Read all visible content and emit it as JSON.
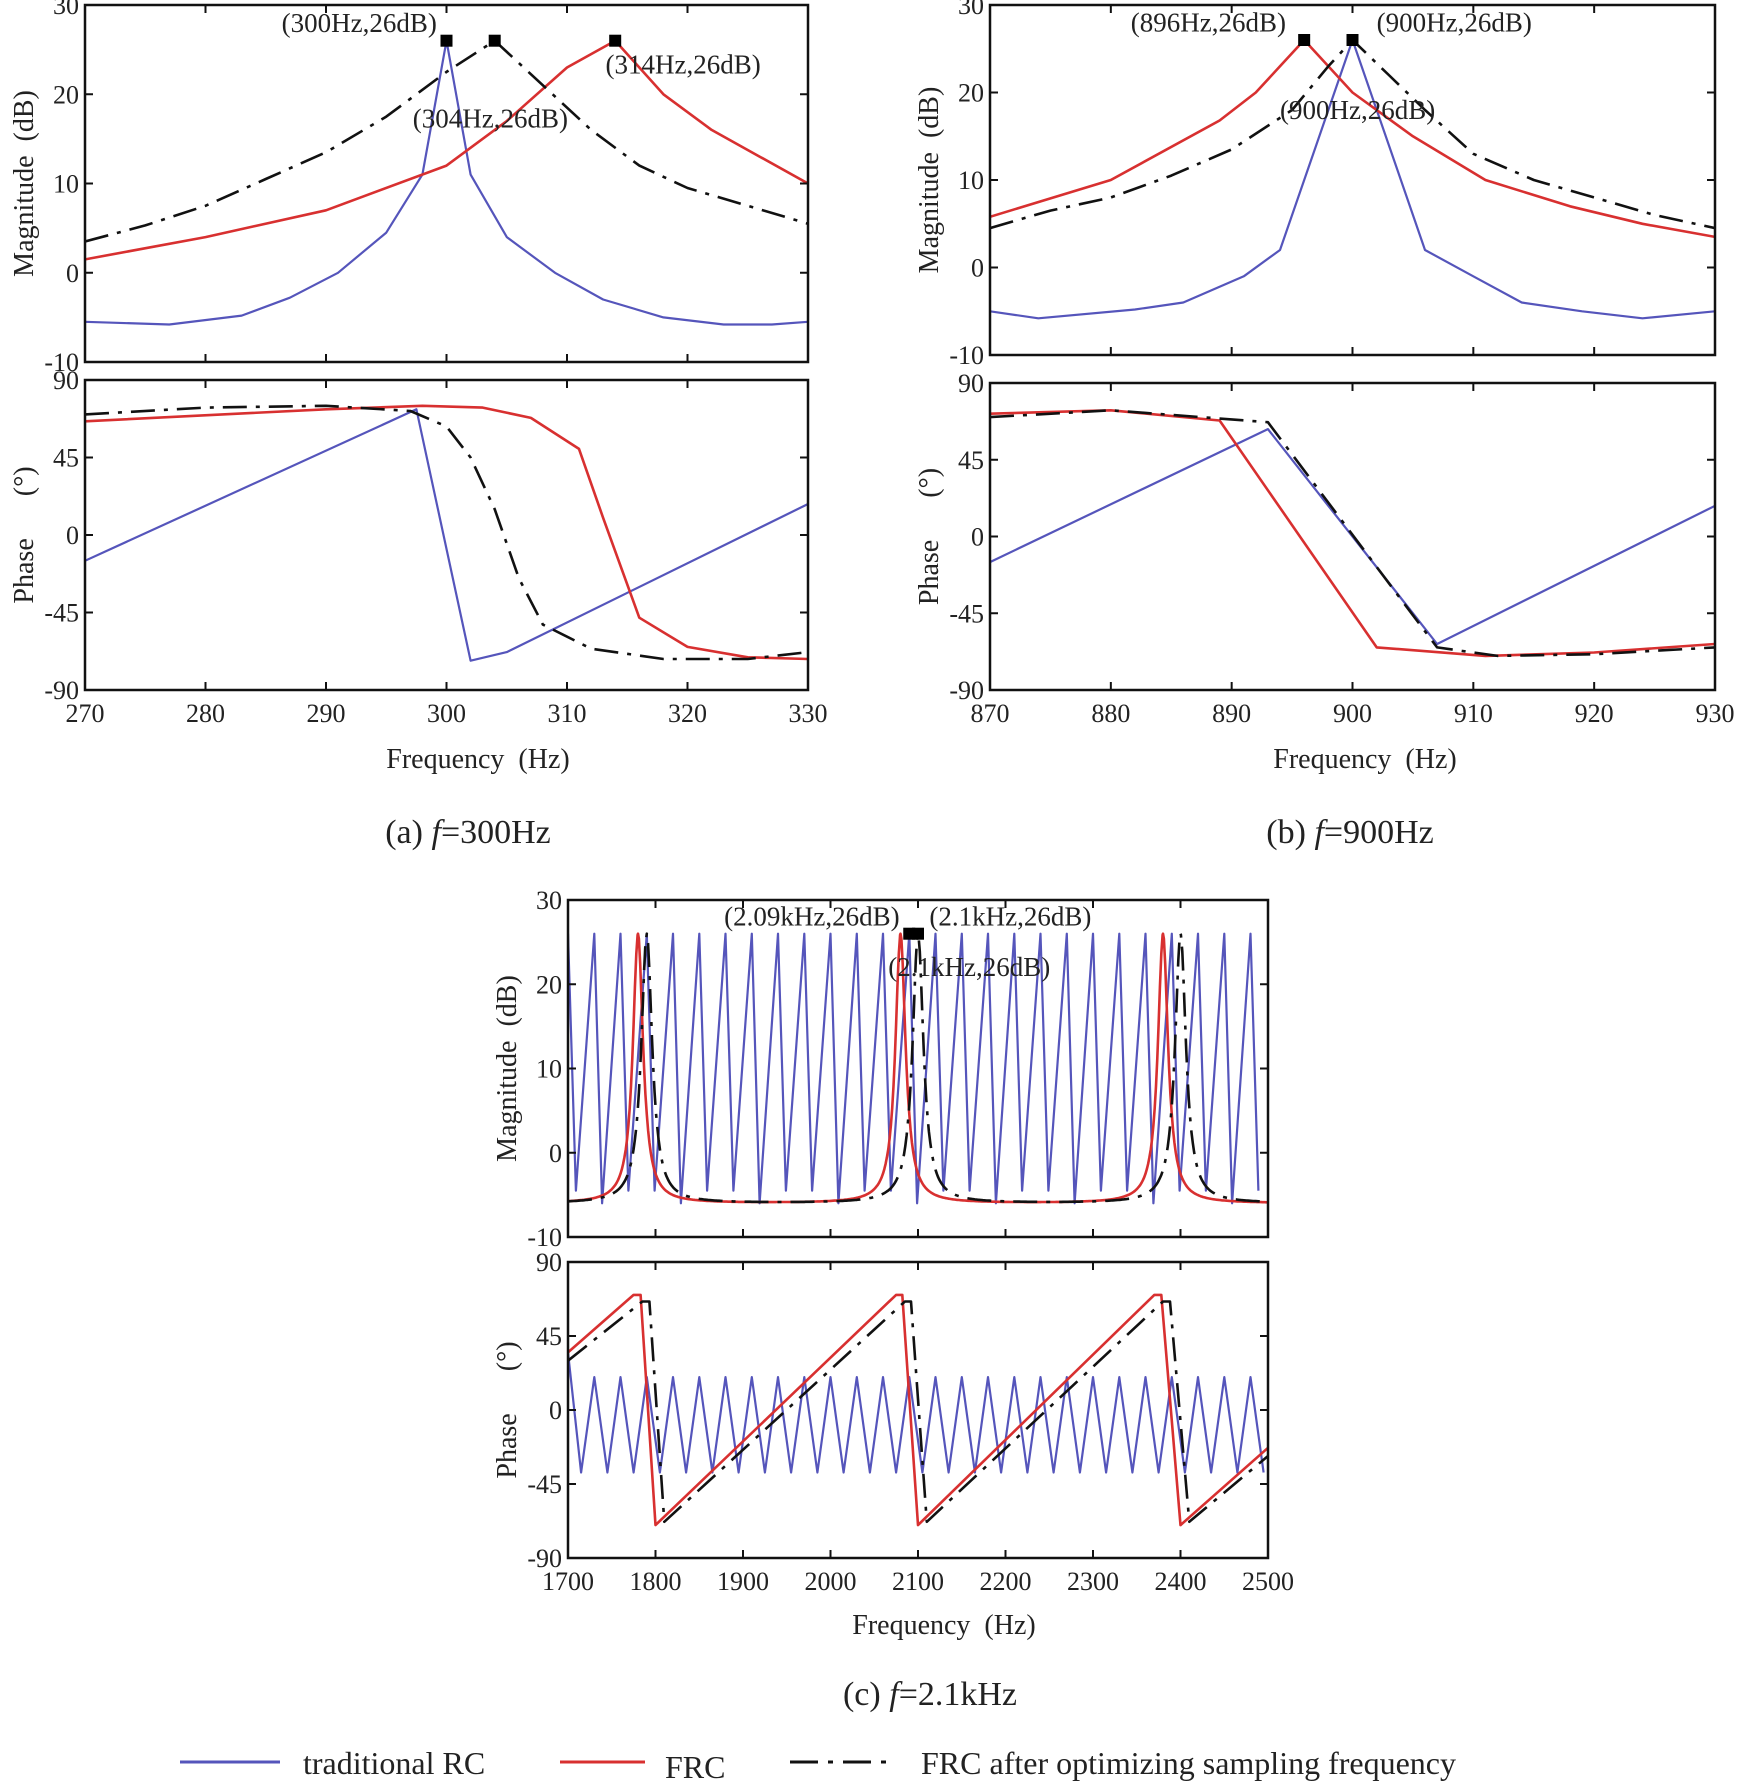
{
  "colors": {
    "rc": "#5555bb",
    "frc": "#d83030",
    "opt": "#111111"
  },
  "legend": [
    {
      "key": "rc",
      "label": "traditional RC"
    },
    {
      "key": "frc",
      "label": "FRC"
    },
    {
      "key": "opt",
      "label": "FRC  after optimizing sampling frequency"
    }
  ],
  "chart_data": [
    {
      "id": "a",
      "type": "line",
      "caption_pre": "(a) ",
      "caption_var": "f",
      "caption_post": "=300Hz",
      "xlabel": "Frequency  (Hz)",
      "xlim": [
        270,
        330
      ],
      "xticks": [
        "270",
        "280",
        "290",
        "300",
        "310",
        "320",
        "330"
      ],
      "magnitude": {
        "ylabel": "Magnitude  (dB)",
        "ylim": [
          -10,
          30
        ],
        "yticks": [
          "30",
          "20",
          "10",
          "0",
          "-10"
        ],
        "series": [
          {
            "key": "rc",
            "name": "traditional RC",
            "x": [
              270,
              277,
              283,
              287,
              291,
              295,
              298,
              300,
              302,
              305,
              309,
              313,
              318,
              323,
              327,
              330
            ],
            "y": [
              -5.5,
              -5.8,
              -4.8,
              -2.8,
              0,
              4.5,
              11,
              26,
              11,
              4,
              0,
              -3,
              -5,
              -5.8,
              -5.8,
              -5.5
            ]
          },
          {
            "key": "frc",
            "name": "FRC",
            "x": [
              270,
              280,
              290,
              300,
              305,
              310,
              314,
              318,
              322,
              326,
              330
            ],
            "y": [
              1.5,
              4,
              7,
              12,
              17,
              23,
              26,
              20,
              16,
              13,
              10
            ]
          },
          {
            "key": "opt",
            "name": "FRC after optimizing sampling frequency",
            "x": [
              270,
              275,
              280,
              285,
              290,
              295,
              300,
              304,
              308,
              312,
              316,
              320,
              325,
              330
            ],
            "y": [
              3.5,
              5.3,
              7.5,
              10.5,
              13.5,
              17.5,
              22.5,
              26,
              21,
              16,
              12,
              9.5,
              7.5,
              5.5
            ]
          }
        ],
        "markers": [
          {
            "x": 300,
            "y": 26
          },
          {
            "x": 304,
            "y": 26
          },
          {
            "x": 314,
            "y": 26
          }
        ],
        "annotations": [
          {
            "text": "(300Hz,26dB)",
            "x": 299.2,
            "y": 27,
            "anchor": "end"
          },
          {
            "text": "(304Hz,26dB)",
            "x": 297.2,
            "y": 16.3,
            "anchor": "start"
          },
          {
            "text": "(314Hz,26dB)",
            "x": 313.2,
            "y": 22.3,
            "anchor": "start"
          }
        ]
      },
      "phase": {
        "ylabel": "Phase      (°)",
        "ylim": [
          -90,
          90
        ],
        "yticks": [
          "90",
          "45",
          "0",
          "-45",
          "-90"
        ],
        "series": [
          {
            "key": "rc",
            "name": "traditional RC",
            "x": [
              270,
              297.5,
              302,
              305,
              330
            ],
            "y": [
              -15,
              73,
              -73,
              -68,
              18
            ]
          },
          {
            "key": "frc",
            "name": "FRC",
            "x": [
              270,
              290,
              298,
              303,
              307,
              311,
              313,
              316,
              320,
              325,
              330
            ],
            "y": [
              66,
              73,
              75,
              74,
              68,
              50,
              10,
              -48,
              -65,
              -71,
              -72
            ]
          },
          {
            "key": "opt",
            "name": "FRC after optimizing sampling frequency",
            "x": [
              270,
              280,
              290,
              297,
              300,
              302,
              304,
              306,
              308,
              312,
              318,
              325,
              330
            ],
            "y": [
              70,
              74,
              75,
              72,
              63,
              45,
              15,
              -25,
              -52,
              -66,
              -72,
              -72,
              -68
            ]
          }
        ]
      }
    },
    {
      "id": "b",
      "type": "line",
      "caption_pre": "(b) ",
      "caption_var": "f",
      "caption_post": "=900Hz",
      "xlabel": "Frequency  (Hz)",
      "xlim": [
        870,
        930
      ],
      "xticks": [
        "870",
        "880",
        "890",
        "900",
        "910",
        "920",
        "930"
      ],
      "magnitude": {
        "ylabel": "Magnitude  (dB)",
        "ylim": [
          -10,
          30
        ],
        "yticks": [
          "30",
          "20",
          "10",
          "0",
          "-10"
        ],
        "series": [
          {
            "key": "rc",
            "name": "traditional RC",
            "x": [
              870,
              874,
              882,
              886,
              891,
              894,
              897,
              900,
              903,
              906,
              910,
              914,
              919,
              924,
              930
            ],
            "y": [
              -5,
              -5.8,
              -4.8,
              -4,
              -1,
              2,
              14,
              26,
              14,
              2,
              -1,
              -4,
              -5,
              -5.8,
              -5
            ]
          },
          {
            "key": "frc",
            "name": "FRC",
            "x": [
              870,
              880,
              889,
              892,
              894,
              896,
              900,
              905,
              911,
              918,
              924,
              930
            ],
            "y": [
              5.8,
              10,
              16.8,
              20,
              23,
              26,
              20,
              15,
              10,
              7,
              5,
              3.5
            ]
          },
          {
            "key": "opt",
            "name": "FRC after optimizing sampling frequency",
            "x": [
              870,
              875,
              880,
              885,
              890,
              895,
              898,
              900,
              903,
              906,
              910,
              915,
              920,
              925,
              930
            ],
            "y": [
              4.5,
              6.5,
              8,
              10.5,
              13.5,
              18,
              23,
              26,
              22,
              18,
              13,
              10,
              8,
              6,
              4.5
            ]
          }
        ],
        "markers": [
          {
            "x": 896,
            "y": 26
          },
          {
            "x": 900,
            "y": 26
          }
        ],
        "annotations": [
          {
            "text": "(896Hz,26dB)",
            "x": 894.5,
            "y": 27,
            "anchor": "end"
          },
          {
            "text": "(900Hz,26dB)",
            "x": 902,
            "y": 27,
            "anchor": "start"
          },
          {
            "text": "(900Hz,26dB)",
            "x": 894,
            "y": 17,
            "anchor": "start"
          }
        ]
      },
      "phase": {
        "ylabel": "Phase      (°)",
        "ylim": [
          -90,
          90
        ],
        "yticks": [
          "90",
          "45",
          "0",
          "-45",
          "-90"
        ],
        "series": [
          {
            "key": "rc",
            "name": "traditional RC",
            "x": [
              870,
              893,
              907,
              930
            ],
            "y": [
              -15,
              63,
              -63,
              18
            ]
          },
          {
            "key": "frc",
            "name": "FRC",
            "x": [
              870,
              880,
              889,
              902,
              911,
              920,
              930
            ],
            "y": [
              72,
              74,
              68,
              -65,
              -70,
              -68,
              -63
            ]
          },
          {
            "key": "opt",
            "name": "FRC after optimizing sampling frequency",
            "x": [
              870,
              880,
              893,
              907,
              912,
              920,
              930
            ],
            "y": [
              70,
              74,
              67,
              -65,
              -70,
              -69,
              -65
            ]
          }
        ]
      }
    },
    {
      "id": "c",
      "type": "line",
      "caption_pre": "(c) ",
      "caption_var": "f",
      "caption_post": "=2.1kHz",
      "xlabel": "Frequency  (Hz)",
      "xlim": [
        1700,
        2500
      ],
      "xticks": [
        "1700",
        "1800",
        "1900",
        "2000",
        "2100",
        "2200",
        "2300",
        "2400",
        "2500"
      ],
      "magnitude": {
        "ylabel": "Magnitude  (dB)",
        "ylim": [
          -10,
          30
        ],
        "yticks": [
          "30",
          "20",
          "10",
          "0",
          "-10"
        ],
        "series": [
          {
            "key": "rc",
            "name": "traditional RC",
            "periodic": {
              "start": 1700,
              "end": 2500,
              "period": 30,
              "peak": 26,
              "trough": -4.5,
              "trough_alt": -6,
              "trough_offset": 0.3
            }
          },
          {
            "key": "frc",
            "name": "FRC",
            "resonant": {
              "peaks": [
                1780,
                2080,
                2380
              ],
              "peak": 26,
              "floor": -6,
              "halfwidth": 7,
              "start": 1700,
              "end": 2500
            }
          },
          {
            "key": "opt",
            "name": "FRC after optimizing sampling frequency",
            "resonant": {
              "peaks": [
                1790,
                2100,
                2400
              ],
              "peak": 26,
              "floor": -6,
              "halfwidth": 7.5,
              "start": 1700,
              "end": 2500
            }
          }
        ],
        "markers": [
          {
            "x": 2090,
            "y": 26
          },
          {
            "x": 2100,
            "y": 26
          }
        ],
        "annotations": [
          {
            "text": "(2.09kHz,26dB)",
            "x": 2079,
            "y": 27,
            "anchor": "end"
          },
          {
            "text": "(2.1kHz,26dB)",
            "x": 2113,
            "y": 27,
            "anchor": "start"
          },
          {
            "text": "(2.1kHz,26dB)",
            "x": 2066,
            "y": 21,
            "anchor": "start"
          }
        ]
      },
      "phase": {
        "ylabel": "Phase      (°)",
        "ylim": [
          -90,
          90
        ],
        "yticks": [
          "90",
          "45",
          "0",
          "-45",
          "-90"
        ],
        "series": [
          {
            "key": "rc",
            "name": "traditional RC",
            "periodic": {
              "start": 1700,
              "end": 2500,
              "period": 30,
              "peak": 20,
              "trough": -38,
              "trough_offset": 0.5,
              "first_peak": 35
            }
          },
          {
            "key": "frc",
            "name": "FRC",
            "sawtooth": {
              "x": [
                1700,
                1775,
                1783,
                1800,
                2075,
                2082,
                2100,
                2370,
                2378,
                2400,
                2500
              ],
              "y": [
                35,
                70,
                70,
                -70,
                70,
                70,
                -70,
                70,
                70,
                -70,
                -23
              ]
            }
          },
          {
            "key": "opt",
            "name": "FRC after optimizing sampling frequency",
            "sawtooth": {
              "x": [
                1700,
                1785,
                1793,
                1810,
                2085,
                2092,
                2110,
                2380,
                2388,
                2410,
                2500
              ],
              "y": [
                30,
                66,
                66,
                -68,
                66,
                66,
                -68,
                66,
                66,
                -68,
                -28
              ]
            }
          }
        ]
      }
    }
  ]
}
